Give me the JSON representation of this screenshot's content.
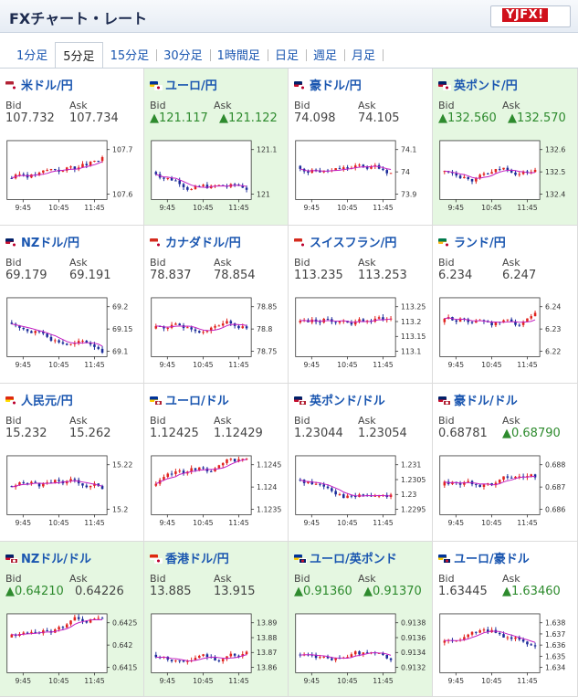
{
  "header": {
    "title": "FXチャート・レート",
    "logo": "YJFX!"
  },
  "tabs": [
    "1分足",
    "5分足",
    "15分足",
    "30分足",
    "1時間足",
    "日足",
    "週足",
    "月足"
  ],
  "active_tab": 1,
  "labels": {
    "bid": "Bid",
    "ask": "Ask"
  },
  "up_arrow": "▲",
  "time_labels": [
    "9:45",
    "10:45",
    "11:45"
  ],
  "colors": {
    "up_candle": "#e0241f",
    "down_candle": "#1c2c9a",
    "ma_line": "#c21cc2",
    "up_text": "#2e8b2e",
    "pair_link": "#1a56b0",
    "highlight_bg": "#e5f7e1"
  },
  "pairs": [
    {
      "name": "米ドル/円",
      "bid": "107.732",
      "ask": "107.734",
      "bid_up": false,
      "ask_up": false,
      "highlight": false,
      "flags": [
        "us",
        "jp"
      ],
      "yticks": [
        "107.7",
        "107.6"
      ],
      "seed": 3
    },
    {
      "name": "ユーロ/円",
      "bid": "121.117",
      "ask": "121.122",
      "bid_up": true,
      "ask_up": true,
      "highlight": true,
      "flags": [
        "eu",
        "jp"
      ],
      "yticks": [
        "121.1",
        "121"
      ],
      "seed": 7
    },
    {
      "name": "豪ドル/円",
      "bid": "74.098",
      "ask": "74.105",
      "bid_up": false,
      "ask_up": false,
      "highlight": false,
      "flags": [
        "au",
        "jp"
      ],
      "yticks": [
        "74.1",
        "74",
        "73.9"
      ],
      "seed": 11
    },
    {
      "name": "英ポンド/円",
      "bid": "132.560",
      "ask": "132.570",
      "bid_up": true,
      "ask_up": true,
      "highlight": true,
      "flags": [
        "gb",
        "jp"
      ],
      "yticks": [
        "132.6",
        "132.5",
        "132.4"
      ],
      "seed": 13
    },
    {
      "name": "NZドル/円",
      "bid": "69.179",
      "ask": "69.191",
      "bid_up": false,
      "ask_up": false,
      "highlight": false,
      "flags": [
        "nz",
        "jp"
      ],
      "yticks": [
        "69.2",
        "69.15",
        "69.1"
      ],
      "seed": 17
    },
    {
      "name": "カナダドル/円",
      "bid": "78.837",
      "ask": "78.854",
      "bid_up": false,
      "ask_up": false,
      "highlight": false,
      "flags": [
        "ca",
        "jp"
      ],
      "yticks": [
        "78.85",
        "78.8",
        "78.75"
      ],
      "seed": 19
    },
    {
      "name": "スイスフラン/円",
      "bid": "113.235",
      "ask": "113.253",
      "bid_up": false,
      "ask_up": false,
      "highlight": false,
      "flags": [
        "ch",
        "jp"
      ],
      "yticks": [
        "113.25",
        "113.2",
        "113.15",
        "113.1"
      ],
      "seed": 23
    },
    {
      "name": "ランド/円",
      "bid": "6.234",
      "ask": "6.247",
      "bid_up": false,
      "ask_up": false,
      "highlight": false,
      "flags": [
        "za",
        "jp"
      ],
      "yticks": [
        "6.24",
        "6.23",
        "6.22"
      ],
      "seed": 29
    },
    {
      "name": "人民元/円",
      "bid": "15.232",
      "ask": "15.262",
      "bid_up": false,
      "ask_up": false,
      "highlight": false,
      "flags": [
        "cn",
        "jp"
      ],
      "yticks": [
        "15.22",
        "15.2"
      ],
      "seed": 31
    },
    {
      "name": "ユーロ/ドル",
      "bid": "1.12425",
      "ask": "1.12429",
      "bid_up": false,
      "ask_up": false,
      "highlight": false,
      "flags": [
        "eu",
        "us"
      ],
      "yticks": [
        "1.1245",
        "1.124",
        "1.1235"
      ],
      "seed": 37
    },
    {
      "name": "英ポンド/ドル",
      "bid": "1.23044",
      "ask": "1.23054",
      "bid_up": false,
      "ask_up": false,
      "highlight": false,
      "flags": [
        "gb",
        "us"
      ],
      "yticks": [
        "1.231",
        "1.2305",
        "1.23",
        "1.2295"
      ],
      "seed": 41
    },
    {
      "name": "豪ドル/ドル",
      "bid": "0.68781",
      "ask": "0.68790",
      "bid_up": false,
      "ask_up": true,
      "highlight": false,
      "flags": [
        "au",
        "us"
      ],
      "yticks": [
        "0.688",
        "0.687",
        "0.686"
      ],
      "seed": 43
    },
    {
      "name": "NZドル/ドル",
      "bid": "0.64210",
      "ask": "0.64226",
      "bid_up": true,
      "ask_up": false,
      "highlight": true,
      "flags": [
        "nz",
        "us"
      ],
      "yticks": [
        "0.6425",
        "0.642",
        "0.6415"
      ],
      "seed": 47
    },
    {
      "name": "香港ドル/円",
      "bid": "13.885",
      "ask": "13.915",
      "bid_up": false,
      "ask_up": false,
      "highlight": true,
      "flags": [
        "hk",
        "jp"
      ],
      "yticks": [
        "13.89",
        "13.88",
        "13.87",
        "13.86"
      ],
      "seed": 53
    },
    {
      "name": "ユーロ/英ポンド",
      "bid": "0.91360",
      "ask": "0.91370",
      "bid_up": true,
      "ask_up": true,
      "highlight": true,
      "flags": [
        "eu",
        "gb"
      ],
      "yticks": [
        "0.9138",
        "0.9136",
        "0.9134",
        "0.9132"
      ],
      "seed": 59
    },
    {
      "name": "ユーロ/豪ドル",
      "bid": "1.63445",
      "ask": "1.63460",
      "bid_up": false,
      "ask_up": true,
      "highlight": false,
      "flags": [
        "eu",
        "au"
      ],
      "yticks": [
        "1.638",
        "1.637",
        "1.636",
        "1.635",
        "1.634"
      ],
      "seed": 61
    }
  ]
}
